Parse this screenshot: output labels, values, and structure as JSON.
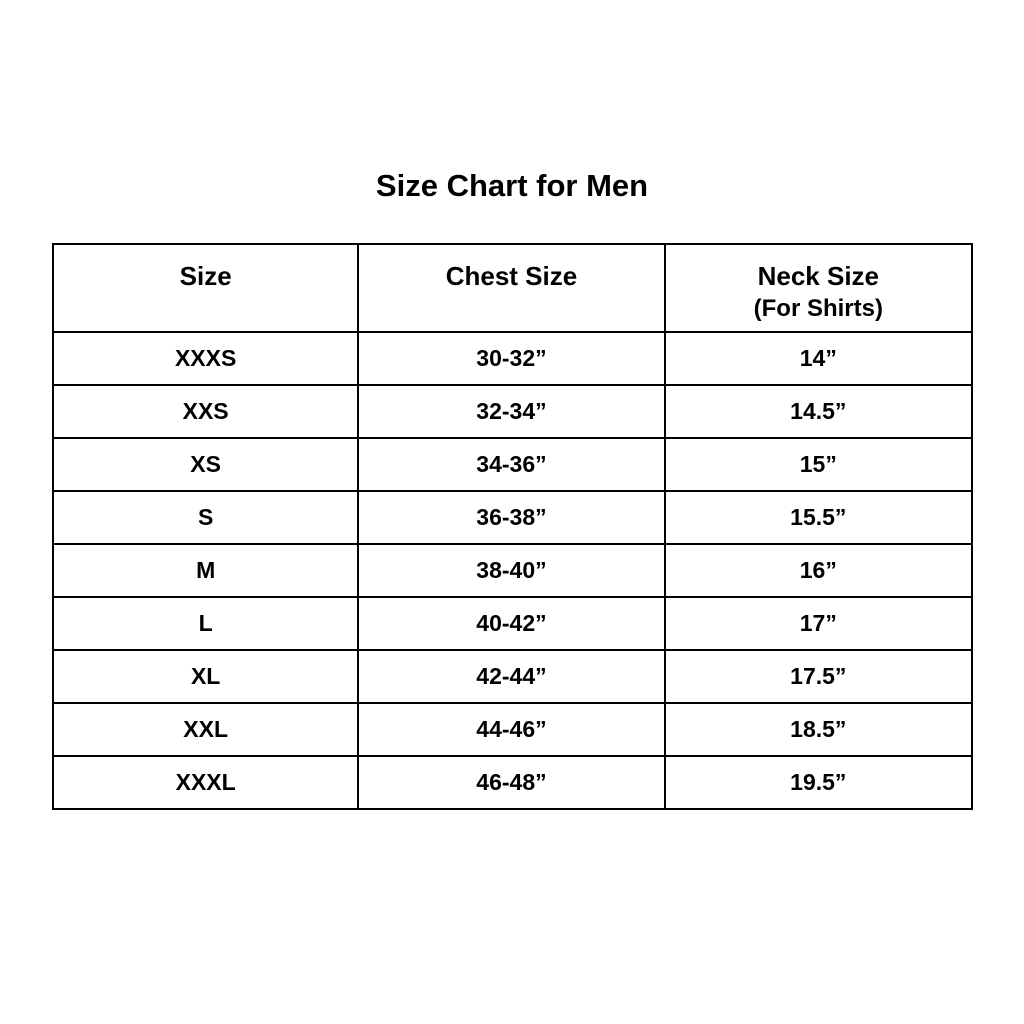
{
  "title": "Size Chart for Men",
  "headers": [
    {
      "label": "Size",
      "sub": ""
    },
    {
      "label": "Chest Size",
      "sub": ""
    },
    {
      "label": "Neck Size",
      "sub": "(For Shirts)"
    }
  ],
  "rows": [
    [
      "XXXS",
      "30-32”",
      "14”"
    ],
    [
      "XXS",
      "32-34”",
      "14.5”"
    ],
    [
      "XS",
      "34-36”",
      "15”"
    ],
    [
      "S",
      "36-38”",
      "15.5”"
    ],
    [
      "M",
      "38-40”",
      "16”"
    ],
    [
      "L",
      "40-42”",
      "17”"
    ],
    [
      "XL",
      "42-44”",
      "17.5”"
    ],
    [
      "XXL",
      "44-46”",
      "18.5”"
    ],
    [
      "XXXL",
      "46-48”",
      "19.5”"
    ]
  ]
}
